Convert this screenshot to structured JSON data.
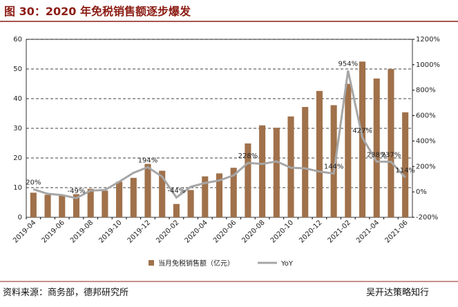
{
  "chart_data": {
    "type": "bar-line",
    "title": "图 30：2020 年免税销售额逐步爆发",
    "source": "资料来源：商务部，德邦研究所",
    "watermark": "吴开达策略知行",
    "categories": [
      "2019-04",
      null,
      "2019-06",
      null,
      "2019-08",
      null,
      "2019-10",
      null,
      "2019-12",
      null,
      "2020-02",
      null,
      "2020-04",
      null,
      "2020-06",
      null,
      "2020-08",
      null,
      "2020-10",
      null,
      "2020-12",
      null,
      "2021-02",
      null,
      "2021-04",
      null,
      "2021-06"
    ],
    "series": [
      {
        "name": "当月免税销售额（亿元）",
        "color": "#a0714a",
        "type": "bar",
        "values": [
          8.3,
          7.6,
          7.3,
          7.8,
          9.6,
          9.0,
          12.0,
          13.3,
          18.0,
          15.7,
          4.5,
          9.2,
          13.8,
          14.8,
          16.7,
          24.9,
          31.0,
          30.2,
          34.0,
          37.2,
          42.6,
          37.8,
          45.0,
          52.5,
          46.8,
          50.0,
          35.4
        ]
      },
      {
        "name": "YoY",
        "color": "#a6a6a6",
        "type": "line",
        "axis": "y2",
        "values": [
          20,
          -15,
          -25,
          -49,
          10,
          15,
          80,
          150,
          194,
          120,
          -44,
          40,
          70,
          90,
          130,
          228,
          220,
          240,
          190,
          185,
          160,
          144,
          954,
          427,
          238,
          237,
          114
        ],
        "value_labels": [
          "20%",
          null,
          null,
          "-49%",
          null,
          null,
          null,
          null,
          "194%",
          null,
          "-44%",
          null,
          null,
          null,
          null,
          "228%",
          null,
          null,
          null,
          null,
          null,
          "144%",
          "954%",
          "427%",
          "238%",
          "237%",
          "114%"
        ]
      }
    ],
    "ylim": [
      0,
      60
    ],
    "yticks": [
      0,
      10,
      20,
      30,
      40,
      50,
      60
    ],
    "y2lim": [
      -200,
      1200
    ],
    "y2ticks": [
      {
        "value": -200,
        "label": "-200%"
      },
      {
        "value": 0,
        "label": "0%"
      },
      {
        "value": 200,
        "label": "200%"
      },
      {
        "value": 400,
        "label": "400%"
      },
      {
        "value": 600,
        "label": "600%"
      },
      {
        "value": 800,
        "label": "800%"
      },
      {
        "value": 1000,
        "label": "1000%"
      },
      {
        "value": 1200,
        "label": "1200%"
      }
    ],
    "grid": true,
    "legend": "bottom"
  }
}
